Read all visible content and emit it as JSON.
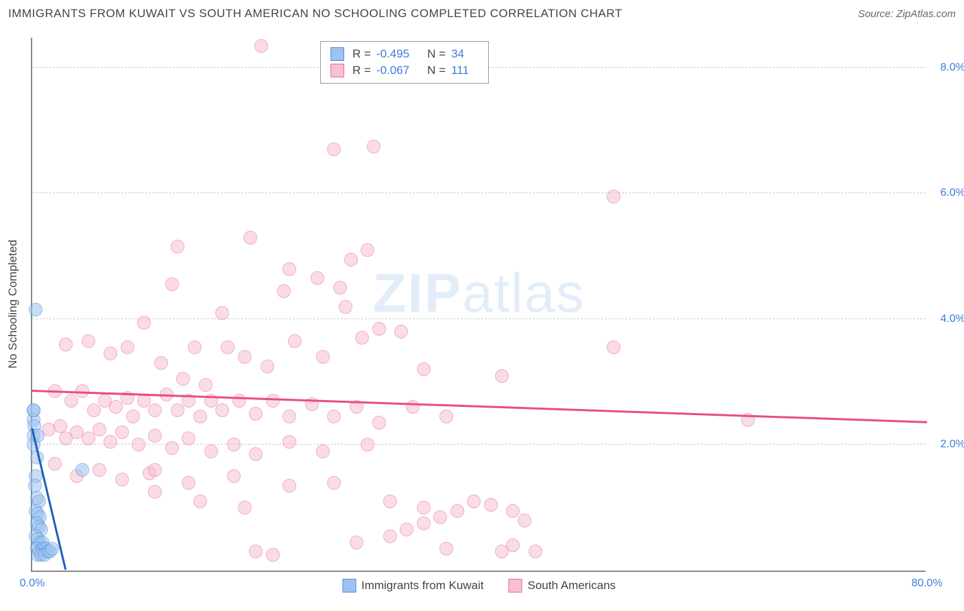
{
  "title": "IMMIGRANTS FROM KUWAIT VS SOUTH AMERICAN NO SCHOOLING COMPLETED CORRELATION CHART",
  "source": "Source: ZipAtlas.com",
  "ylabel": "No Schooling Completed",
  "watermark_a": "ZIP",
  "watermark_b": "atlas",
  "chart": {
    "type": "scatter",
    "xlim": [
      0,
      80
    ],
    "ylim": [
      0,
      8.5
    ],
    "xticks": [
      {
        "v": 0,
        "label": "0.0%"
      },
      {
        "v": 80,
        "label": "80.0%"
      }
    ],
    "yticks": [
      {
        "v": 2,
        "label": "2.0%"
      },
      {
        "v": 4,
        "label": "4.0%"
      },
      {
        "v": 6,
        "label": "6.0%"
      },
      {
        "v": 8,
        "label": "8.0%"
      }
    ],
    "grid_color": "#cccccc",
    "background": "#ffffff",
    "axis_color": "#888888",
    "tick_color": "#3b7dd8",
    "point_radius": 10,
    "point_opacity": 0.55,
    "series": [
      {
        "name": "Immigrants from Kuwait",
        "fill": "#9dc3f0",
        "stroke": "#4a8dde",
        "line_color": "#1e5fb8",
        "R": "-0.495",
        "N": "34",
        "trend": {
          "x1": 0,
          "y1": 2.25,
          "x2": 3.0,
          "y2": 0.0
        },
        "points": [
          [
            0.3,
            4.15
          ],
          [
            0.1,
            2.55
          ],
          [
            0.1,
            2.4
          ],
          [
            0.15,
            2.55
          ],
          [
            0.2,
            2.3
          ],
          [
            0.1,
            2.15
          ],
          [
            0.15,
            2.0
          ],
          [
            0.5,
            2.15
          ],
          [
            0.4,
            1.8
          ],
          [
            4.5,
            1.6
          ],
          [
            0.3,
            1.5
          ],
          [
            0.25,
            1.35
          ],
          [
            0.4,
            1.15
          ],
          [
            0.6,
            1.1
          ],
          [
            0.3,
            0.95
          ],
          [
            0.5,
            0.9
          ],
          [
            0.7,
            0.85
          ],
          [
            0.4,
            0.75
          ],
          [
            0.6,
            0.7
          ],
          [
            0.8,
            0.65
          ],
          [
            0.3,
            0.55
          ],
          [
            0.5,
            0.5
          ],
          [
            0.7,
            0.45
          ],
          [
            0.9,
            0.45
          ],
          [
            0.4,
            0.35
          ],
          [
            0.6,
            0.3
          ],
          [
            1.0,
            0.35
          ],
          [
            1.2,
            0.35
          ],
          [
            0.5,
            0.25
          ],
          [
            0.8,
            0.25
          ],
          [
            1.1,
            0.25
          ],
          [
            1.4,
            0.3
          ],
          [
            1.6,
            0.3
          ],
          [
            1.8,
            0.35
          ]
        ]
      },
      {
        "name": "South Americans",
        "fill": "#f7c1cf",
        "stroke": "#e86b94",
        "line_color": "#e84b8a",
        "R": "-0.067",
        "N": "111",
        "trend": {
          "x1": 0,
          "y1": 2.85,
          "x2": 80,
          "y2": 2.35
        },
        "points": [
          [
            20.5,
            8.35
          ],
          [
            27,
            6.7
          ],
          [
            30.5,
            6.75
          ],
          [
            52,
            5.95
          ],
          [
            19.5,
            5.3
          ],
          [
            23,
            4.8
          ],
          [
            28.5,
            4.95
          ],
          [
            30,
            5.1
          ],
          [
            13,
            5.15
          ],
          [
            28,
            4.2
          ],
          [
            29.5,
            3.7
          ],
          [
            12.5,
            4.55
          ],
          [
            22.5,
            4.45
          ],
          [
            25.5,
            4.65
          ],
          [
            27.5,
            4.5
          ],
          [
            17,
            4.1
          ],
          [
            10,
            3.95
          ],
          [
            3,
            3.6
          ],
          [
            5,
            3.65
          ],
          [
            7,
            3.45
          ],
          [
            8.5,
            3.55
          ],
          [
            11.5,
            3.3
          ],
          [
            13.5,
            3.05
          ],
          [
            14.5,
            3.55
          ],
          [
            15.5,
            2.95
          ],
          [
            17.5,
            3.55
          ],
          [
            19,
            3.4
          ],
          [
            21,
            3.25
          ],
          [
            23.5,
            3.65
          ],
          [
            26,
            3.4
          ],
          [
            31,
            3.85
          ],
          [
            33,
            3.8
          ],
          [
            35,
            3.2
          ],
          [
            42,
            3.1
          ],
          [
            52,
            3.55
          ],
          [
            2,
            2.85
          ],
          [
            3.5,
            2.7
          ],
          [
            4.5,
            2.85
          ],
          [
            5.5,
            2.55
          ],
          [
            6.5,
            2.7
          ],
          [
            7.5,
            2.6
          ],
          [
            8.5,
            2.75
          ],
          [
            9,
            2.45
          ],
          [
            10,
            2.7
          ],
          [
            11,
            2.55
          ],
          [
            12,
            2.8
          ],
          [
            13,
            2.55
          ],
          [
            14,
            2.7
          ],
          [
            15,
            2.45
          ],
          [
            16,
            2.7
          ],
          [
            17,
            2.55
          ],
          [
            18.5,
            2.7
          ],
          [
            20,
            2.5
          ],
          [
            21.5,
            2.7
          ],
          [
            23,
            2.45
          ],
          [
            25,
            2.65
          ],
          [
            27,
            2.45
          ],
          [
            29,
            2.6
          ],
          [
            31,
            2.35
          ],
          [
            34,
            2.6
          ],
          [
            37,
            2.45
          ],
          [
            64,
            2.4
          ],
          [
            1.5,
            2.25
          ],
          [
            2.5,
            2.3
          ],
          [
            3,
            2.1
          ],
          [
            4,
            2.2
          ],
          [
            5,
            2.1
          ],
          [
            6,
            2.25
          ],
          [
            7,
            2.05
          ],
          [
            8,
            2.2
          ],
          [
            9.5,
            2.0
          ],
          [
            11,
            2.15
          ],
          [
            12.5,
            1.95
          ],
          [
            14,
            2.1
          ],
          [
            16,
            1.9
          ],
          [
            18,
            2.0
          ],
          [
            20,
            1.85
          ],
          [
            23,
            2.05
          ],
          [
            26,
            1.9
          ],
          [
            30,
            2.0
          ],
          [
            2,
            1.7
          ],
          [
            4,
            1.5
          ],
          [
            6,
            1.6
          ],
          [
            8,
            1.45
          ],
          [
            10.5,
            1.55
          ],
          [
            14,
            1.4
          ],
          [
            18,
            1.5
          ],
          [
            11,
            1.6
          ],
          [
            23,
            1.35
          ],
          [
            27,
            1.4
          ],
          [
            32,
            1.1
          ],
          [
            35,
            1.0
          ],
          [
            36.5,
            0.85
          ],
          [
            38,
            0.95
          ],
          [
            39.5,
            1.1
          ],
          [
            41,
            1.05
          ],
          [
            43,
            0.95
          ],
          [
            44,
            0.8
          ],
          [
            37,
            0.35
          ],
          [
            20,
            0.3
          ],
          [
            21.5,
            0.25
          ],
          [
            32,
            0.55
          ],
          [
            33.5,
            0.65
          ],
          [
            35,
            0.75
          ],
          [
            29,
            0.45
          ],
          [
            42,
            0.3
          ],
          [
            43,
            0.4
          ],
          [
            45,
            0.3
          ],
          [
            11,
            1.25
          ],
          [
            15,
            1.1
          ],
          [
            19,
            1.0
          ]
        ]
      }
    ]
  },
  "stats_labels": {
    "R": "R =",
    "N": "N ="
  }
}
